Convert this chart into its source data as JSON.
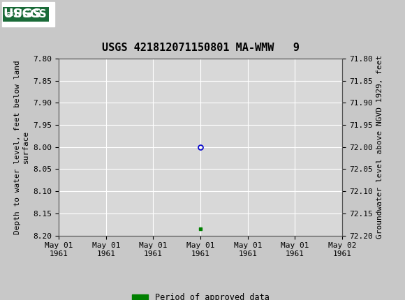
{
  "title": "USGS 421812071150801 MA-WMW   9",
  "left_ylabel": "Depth to water level, feet below land\nsurface",
  "right_ylabel": "Groundwater level above NGVD 1929, feet",
  "ylim_left": [
    7.8,
    8.2
  ],
  "ylim_right": [
    71.8,
    72.2
  ],
  "yticks_left": [
    7.8,
    7.85,
    7.9,
    7.95,
    8.0,
    8.05,
    8.1,
    8.15,
    8.2
  ],
  "yticks_right": [
    71.8,
    71.85,
    71.9,
    71.95,
    72.0,
    72.05,
    72.1,
    72.15,
    72.2
  ],
  "xlim": [
    0,
    6
  ],
  "xtick_positions": [
    0,
    1,
    2,
    3,
    4,
    5,
    6
  ],
  "xtick_labels": [
    "May 01\n1961",
    "May 01\n1961",
    "May 01\n1961",
    "May 01\n1961",
    "May 01\n1961",
    "May 01\n1961",
    "May 02\n1961"
  ],
  "data_point_x": 3.0,
  "data_point_y": 8.0,
  "data_point_color": "#0000cc",
  "data_point_marker": "o",
  "data_point_size": 5,
  "green_mark_x": 3.0,
  "green_mark_y": 8.185,
  "green_mark_color": "#008000",
  "header_bg_color": "#1a6b38",
  "plot_bg_color": "#d8d8d8",
  "fig_bg_color": "#c8c8c8",
  "grid_color": "#ffffff",
  "legend_label": "Period of approved data",
  "legend_color": "#008000",
  "font_family": "monospace",
  "title_fontsize": 11,
  "axis_label_fontsize": 8,
  "tick_fontsize": 8
}
